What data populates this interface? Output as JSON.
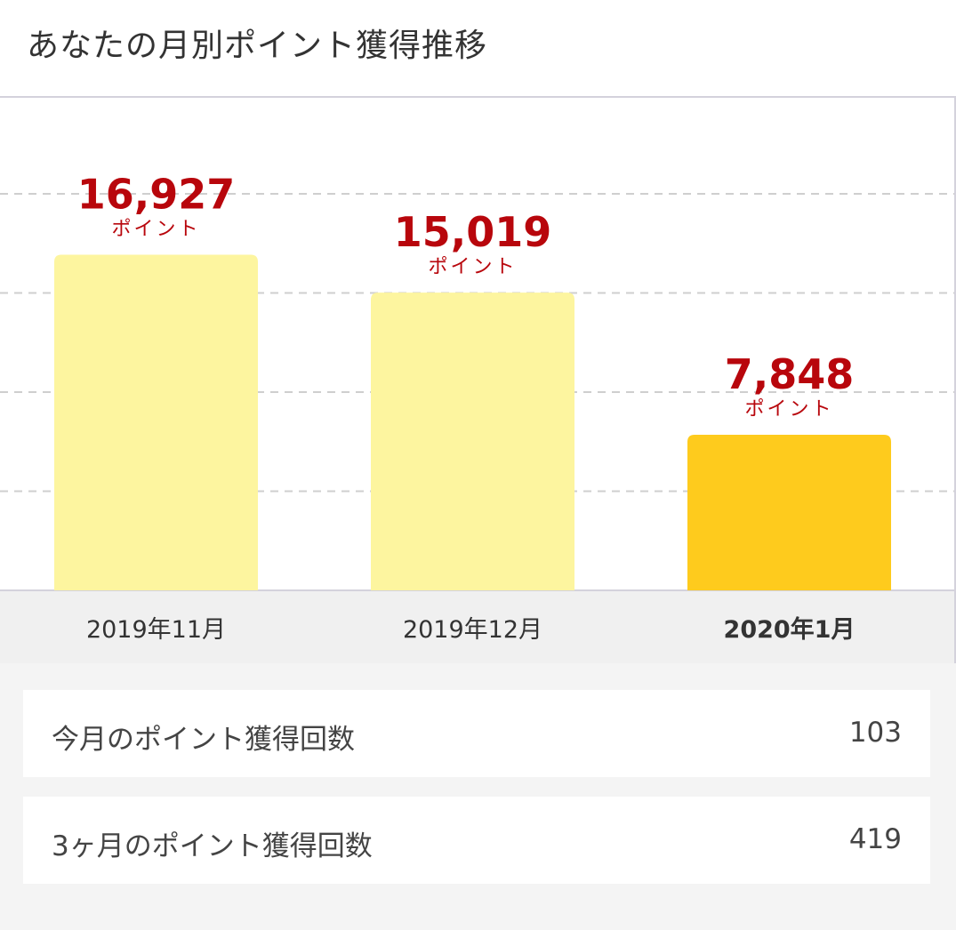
{
  "page": {
    "title": "あなたの月別ポイント獲得推移"
  },
  "chart_data": {
    "type": "bar",
    "categories": [
      "2019年11月",
      "2019年12月",
      "2020年1月"
    ],
    "values": [
      16927,
      15019,
      7848
    ],
    "value_labels": [
      "16,927",
      "15,019",
      "7,848"
    ],
    "unit_label": "ポイント",
    "highlight_index": 2,
    "ylim": [
      0,
      20000
    ],
    "grid": true,
    "colors": {
      "bar": "#fdf59f",
      "bar_highlight": "#fecb1d",
      "value_text": "#b8060c",
      "unit_text": "#b8060c",
      "axis_band": "#f0f0f0",
      "grid_line": "#cfcfcf",
      "category_text": "#333333"
    }
  },
  "stats": [
    {
      "label": "今月のポイント獲得回数",
      "value": "103"
    },
    {
      "label": "3ヶ月のポイント獲得回数",
      "value": "419"
    }
  ]
}
